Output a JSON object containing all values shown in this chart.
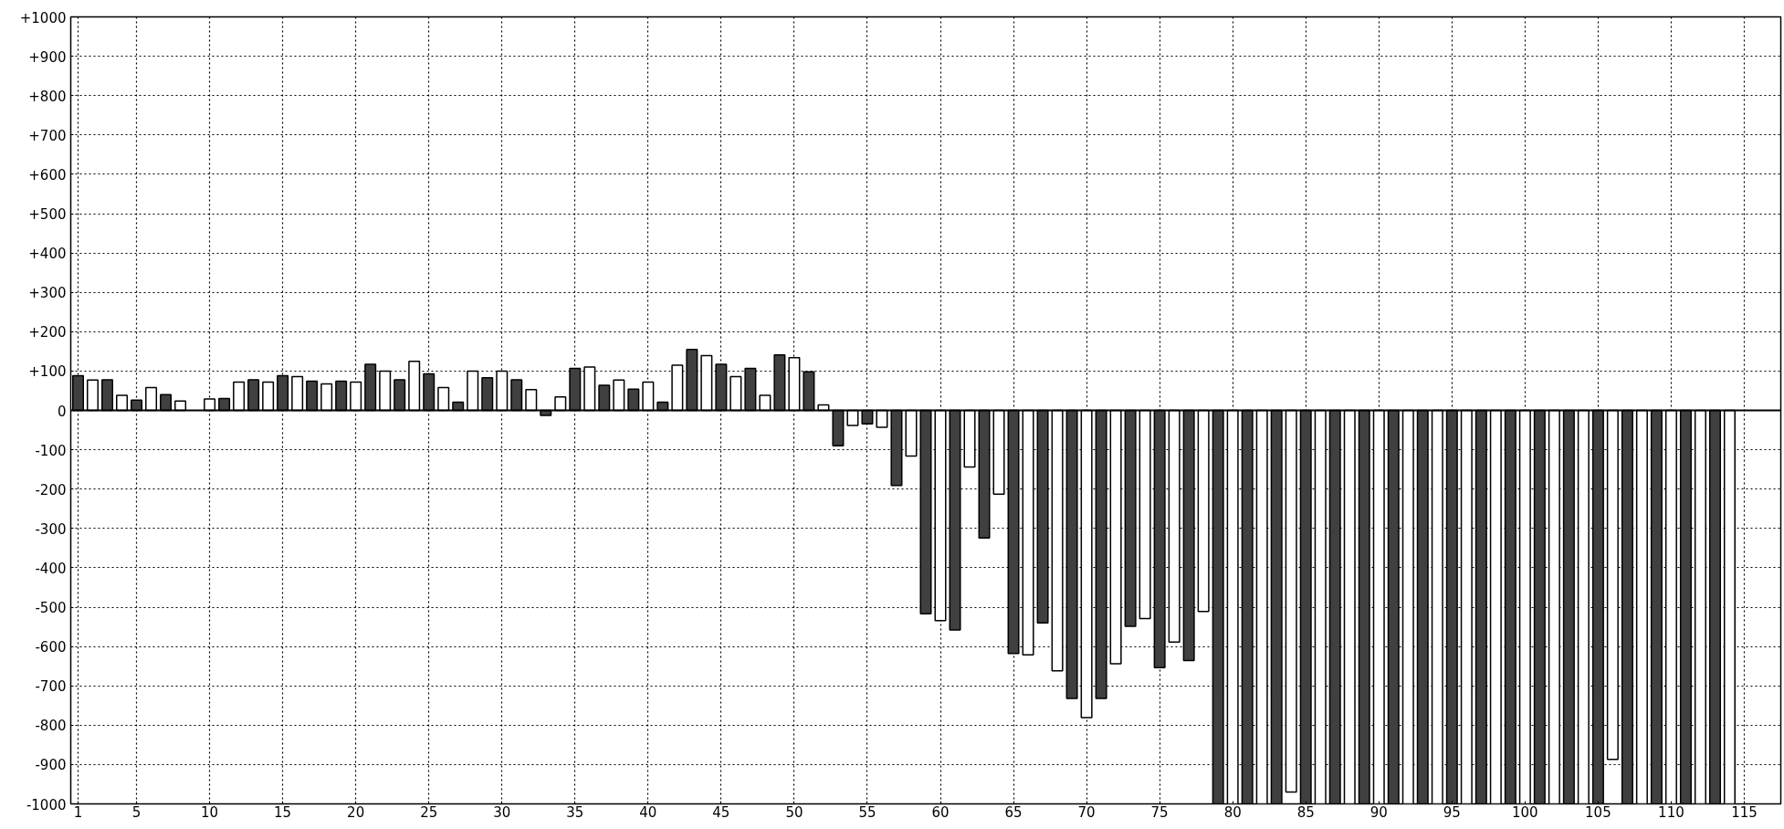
{
  "chart_data": {
    "type": "bar",
    "x": [
      1,
      2,
      3,
      4,
      5,
      6,
      7,
      8,
      9,
      10,
      11,
      12,
      13,
      14,
      15,
      16,
      17,
      18,
      19,
      20,
      21,
      22,
      23,
      24,
      25,
      26,
      27,
      28,
      29,
      30,
      31,
      32,
      33,
      34,
      35,
      36,
      37,
      38,
      39,
      40,
      41,
      42,
      43,
      44,
      45,
      46,
      47,
      48,
      49,
      50,
      51,
      52,
      53,
      54,
      55,
      56,
      57,
      58,
      59,
      60,
      61,
      62,
      63,
      64,
      65,
      66,
      67,
      68,
      69,
      70,
      71,
      72,
      73,
      74,
      75,
      76,
      77,
      78,
      79,
      80,
      81,
      82,
      83,
      84,
      85,
      86,
      87,
      88,
      89,
      90,
      91,
      92,
      93,
      94,
      95,
      96,
      97,
      98,
      99,
      100,
      101,
      102,
      103,
      104,
      105,
      106,
      107,
      108,
      109,
      110,
      111,
      112,
      113,
      114
    ],
    "values": [
      88,
      77,
      78,
      38,
      26,
      58,
      40,
      24,
      null,
      29,
      30,
      72,
      78,
      72,
      88,
      86,
      74,
      67,
      74,
      72,
      117,
      100,
      78,
      125,
      93,
      58,
      21,
      100,
      83,
      100,
      78,
      53,
      -13,
      34,
      107,
      110,
      64,
      77,
      54,
      72,
      21,
      115,
      155,
      139,
      117,
      86,
      107,
      38,
      141,
      134,
      98,
      14,
      -90,
      -38,
      -34,
      -43,
      -191,
      -116,
      -517,
      -534,
      -558,
      -144,
      -324,
      -213,
      -618,
      -621,
      -540,
      -662,
      -732,
      -781,
      -732,
      -644,
      -549,
      -529,
      -654,
      -589,
      -636,
      -511,
      -1000,
      -1000,
      -1000,
      -1000,
      -1000,
      -970,
      -1000,
      -1000,
      -1000,
      -1000,
      -1000,
      -1000,
      -1000,
      -1000,
      -1000,
      -1000,
      -1000,
      -1000,
      -1000,
      -1000,
      -1000,
      -1000,
      -1000,
      -1000,
      -1000,
      -1000,
      -1000,
      -887,
      -1000,
      -1000,
      -1000,
      -1000,
      -1000,
      -1000,
      -1000,
      -1000
    ],
    "colors": [
      "#404040",
      "#ffffff",
      "#404040",
      "#ffffff",
      "#404040",
      "#ffffff",
      "#404040",
      "#ffffff",
      "#404040",
      "#ffffff",
      "#404040",
      "#ffffff",
      "#404040",
      "#ffffff",
      "#404040",
      "#ffffff",
      "#404040",
      "#ffffff",
      "#404040",
      "#ffffff",
      "#404040",
      "#ffffff",
      "#404040",
      "#ffffff",
      "#404040",
      "#ffffff",
      "#404040",
      "#ffffff",
      "#404040",
      "#ffffff",
      "#404040",
      "#ffffff",
      "#404040",
      "#ffffff",
      "#404040",
      "#ffffff",
      "#404040",
      "#ffffff",
      "#404040",
      "#ffffff",
      "#404040",
      "#ffffff",
      "#404040",
      "#ffffff",
      "#404040",
      "#ffffff",
      "#404040",
      "#ffffff",
      "#404040",
      "#ffffff",
      "#404040",
      "#ffffff",
      "#404040",
      "#ffffff",
      "#404040",
      "#ffffff",
      "#404040",
      "#ffffff",
      "#404040",
      "#ffffff",
      "#404040",
      "#ffffff",
      "#404040",
      "#ffffff",
      "#404040",
      "#ffffff",
      "#404040",
      "#ffffff",
      "#404040",
      "#ffffff",
      "#404040",
      "#ffffff",
      "#404040",
      "#ffffff",
      "#404040",
      "#ffffff",
      "#404040",
      "#ffffff",
      "#404040",
      "#ffffff",
      "#404040",
      "#ffffff",
      "#404040",
      "#ffffff",
      "#404040",
      "#ffffff",
      "#404040",
      "#ffffff",
      "#404040",
      "#ffffff",
      "#404040",
      "#ffffff",
      "#404040",
      "#ffffff",
      "#404040",
      "#ffffff",
      "#404040",
      "#ffffff",
      "#404040",
      "#ffffff",
      "#404040",
      "#ffffff",
      "#404040",
      "#ffffff",
      "#404040",
      "#ffffff",
      "#404040",
      "#ffffff",
      "#404040",
      "#ffffff",
      "#404040",
      "#ffffff",
      "#404040",
      "#ffffff"
    ],
    "xlim": [
      0.5,
      117.5
    ],
    "xticks": [
      1,
      5,
      10,
      15,
      20,
      25,
      30,
      35,
      40,
      45,
      50,
      55,
      60,
      65,
      70,
      75,
      80,
      85,
      90,
      95,
      100,
      105,
      110,
      115
    ],
    "ylim": [
      -1000,
      1000
    ],
    "yticks": [
      {
        "value": -1000,
        "label": "-1000"
      },
      {
        "value": -900,
        "label": "-900"
      },
      {
        "value": -800,
        "label": "-800"
      },
      {
        "value": -700,
        "label": "-700"
      },
      {
        "value": -600,
        "label": "-600"
      },
      {
        "value": -500,
        "label": "-500"
      },
      {
        "value": -400,
        "label": "-400"
      },
      {
        "value": -300,
        "label": "-300"
      },
      {
        "value": -200,
        "label": "-200"
      },
      {
        "value": -100,
        "label": "-100"
      },
      0,
      {
        "value": 100,
        "label": "+100"
      },
      {
        "value": 200,
        "label": "+200"
      },
      {
        "value": 300,
        "label": "+300"
      },
      {
        "value": 400,
        "label": "+400"
      },
      {
        "value": 500,
        "label": "+500"
      },
      {
        "value": 600,
        "label": "+600"
      },
      {
        "value": 700,
        "label": "+700"
      },
      {
        "value": 800,
        "label": "+800"
      },
      {
        "value": 900,
        "label": "+900"
      },
      {
        "value": 1000,
        "label": "+1000"
      }
    ],
    "grid": true
  }
}
